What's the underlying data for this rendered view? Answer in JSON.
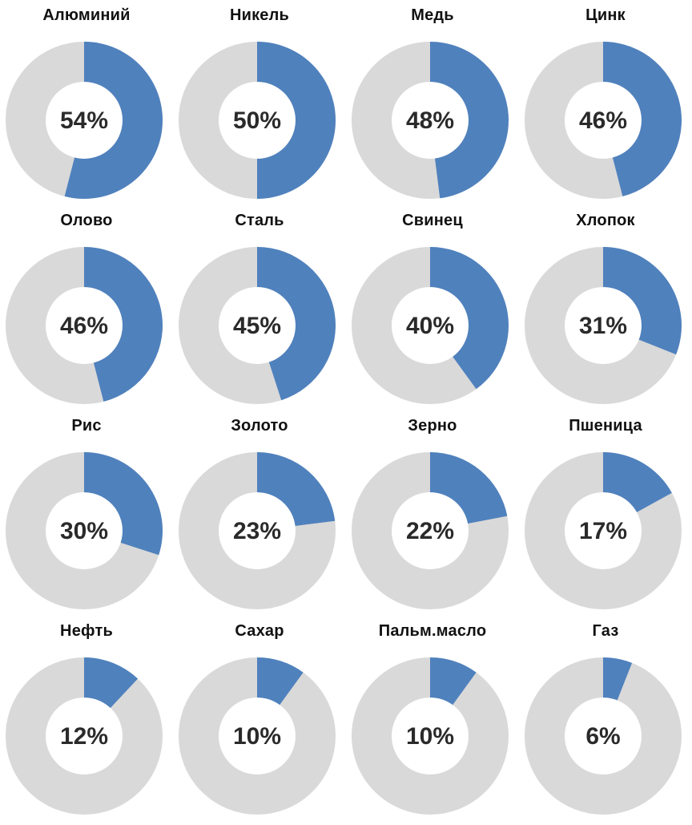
{
  "chart_data": {
    "type": "donut-grid",
    "colors": {
      "value": "#4f81bd",
      "remainder": "#d9d9d9"
    },
    "items": [
      {
        "name": "Алюминий",
        "value": 54,
        "label": "54%"
      },
      {
        "name": "Никель",
        "value": 50,
        "label": "50%"
      },
      {
        "name": "Медь",
        "value": 48,
        "label": "48%"
      },
      {
        "name": "Цинк",
        "value": 46,
        "label": "46%"
      },
      {
        "name": "Олово",
        "value": 46,
        "label": "46%"
      },
      {
        "name": "Сталь",
        "value": 45,
        "label": "45%"
      },
      {
        "name": "Свинец",
        "value": 40,
        "label": "40%"
      },
      {
        "name": "Хлопок",
        "value": 31,
        "label": "31%"
      },
      {
        "name": "Рис",
        "value": 30,
        "label": "30%"
      },
      {
        "name": "Золото",
        "value": 23,
        "label": "23%"
      },
      {
        "name": "Зерно",
        "value": 22,
        "label": "22%"
      },
      {
        "name": "Пшеница",
        "value": 17,
        "label": "17%"
      },
      {
        "name": "Нефть",
        "value": 12,
        "label": "12%"
      },
      {
        "name": "Сахар",
        "value": 10,
        "label": "10%"
      },
      {
        "name": "Пальм.масло",
        "value": 10,
        "label": "10%"
      },
      {
        "name": "Газ",
        "value": 6,
        "label": "6%"
      }
    ]
  }
}
